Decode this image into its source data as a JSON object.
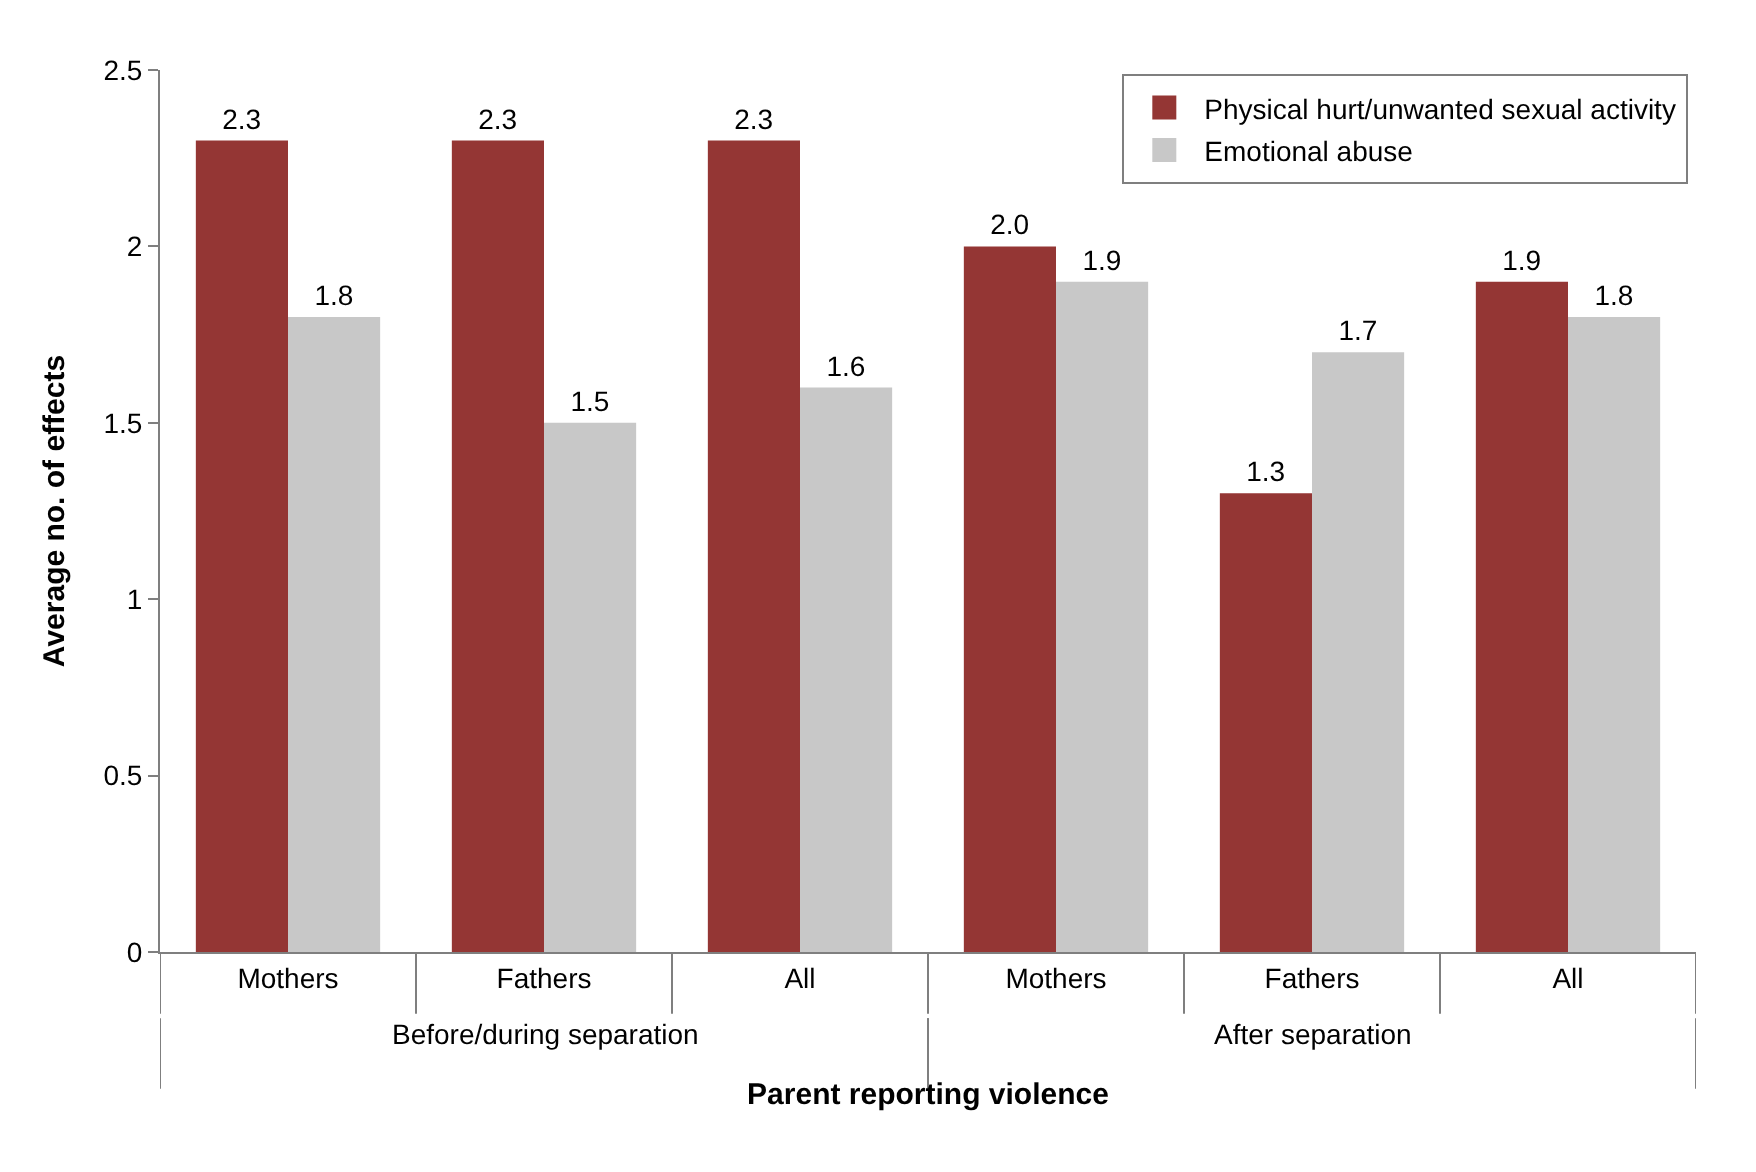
{
  "chart_data": {
    "type": "bar",
    "xlabel": "Parent reporting violence",
    "ylabel": "Average no. of effects",
    "categories": [
      "Mothers",
      "Fathers",
      "All",
      "Mothers",
      "Fathers",
      "All"
    ],
    "annotations": [
      "Before/during separation",
      "After separation"
    ],
    "series": [
      {
        "name": "Physical hurt/unwanted sexual activity",
        "color": "#943634",
        "values": [
          2.3,
          2.3,
          2.3,
          2.0,
          1.3,
          1.9
        ],
        "value_labels": [
          "2.3",
          "2.3",
          "2.3",
          "2.0",
          "1.3",
          "1.9"
        ]
      },
      {
        "name": "Emotional abuse",
        "color": "#c8c8c8",
        "values": [
          1.8,
          1.5,
          1.6,
          1.9,
          1.7,
          1.8
        ],
        "value_labels": [
          "1.8",
          "1.5",
          "1.6",
          "1.9",
          "1.7",
          "1.8"
        ]
      }
    ],
    "ylim": [
      0,
      2.5
    ],
    "yticks": [
      0,
      0.5,
      1,
      1.5,
      2,
      2.5
    ],
    "legend": "top right"
  }
}
